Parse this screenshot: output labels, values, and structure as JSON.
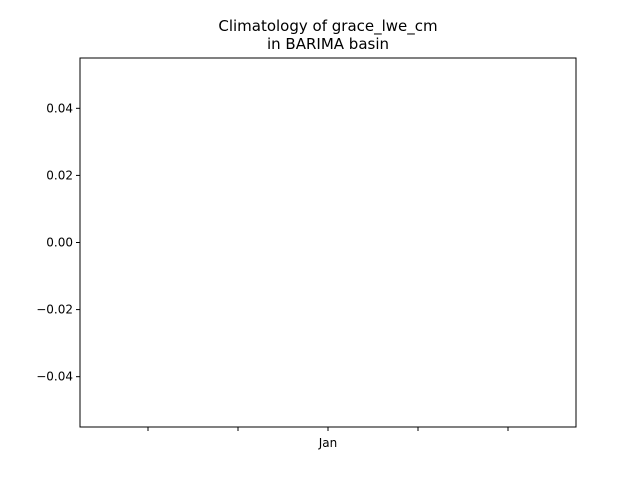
{
  "chart_data": {
    "type": "line",
    "title_lines": [
      "Climatology of grace_lwe_cm",
      "in BARIMA basin"
    ],
    "xlabel": "",
    "ylabel": "",
    "ylim": [
      -0.055,
      0.055
    ],
    "yticks": [
      0.04,
      0.02,
      0.0,
      -0.02,
      -0.04
    ],
    "ytick_labels": [
      "0.04",
      "0.02",
      "0.00",
      "−0.02",
      "−0.04"
    ],
    "xtick_labels": [
      "",
      "",
      "Jan",
      "",
      ""
    ],
    "series": [],
    "grid": false
  }
}
